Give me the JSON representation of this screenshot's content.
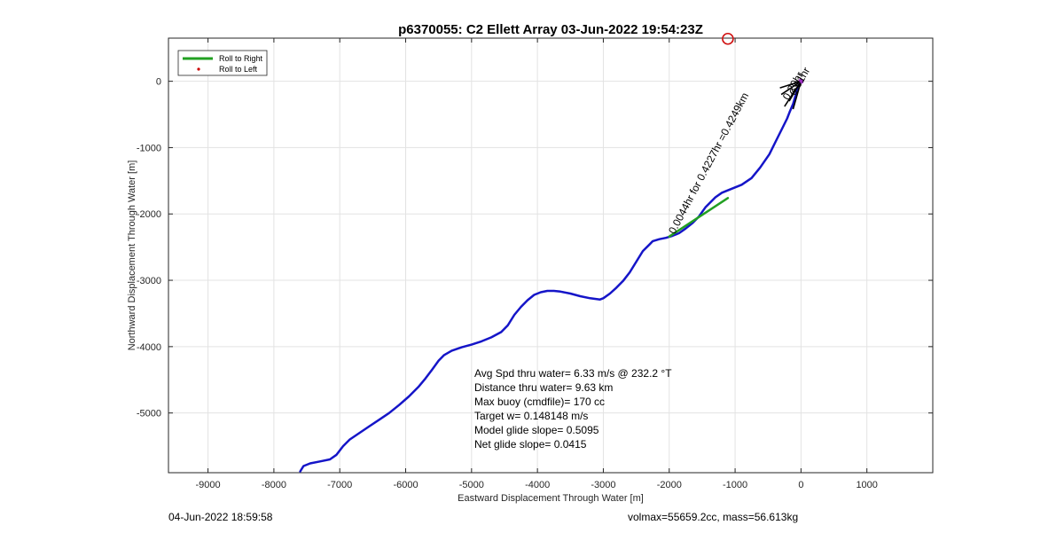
{
  "title": "p6370055: C2 Ellett Array 03-Jun-2022 19:54:23Z",
  "footer": {
    "left": "04-Jun-2022 18:59:58",
    "right": "volmax=55659.2cc, mass=56.613kg"
  },
  "colors": {
    "track": "#1515c8",
    "roll_right": "#22a022",
    "roll_left": "#cc0000",
    "marker": "#d01010",
    "annotation": "#000000",
    "end_marker": "#9b30c0"
  },
  "chart_data": {
    "type": "line",
    "title": "p6370055: C2 Ellett Array 03-Jun-2022 19:54:23Z",
    "xlabel": "Eastward Displacement Through Water [m]",
    "ylabel": "Northward Displacement Through Water [m]",
    "xlim": [
      -9600,
      2000
    ],
    "ylim": [
      -5900,
      650
    ],
    "xticks": [
      -9000,
      -8000,
      -7000,
      -6000,
      -5000,
      -4000,
      -3000,
      -2000,
      -1000,
      0,
      1000
    ],
    "yticks": [
      0,
      -1000,
      -2000,
      -3000,
      -4000,
      -5000
    ],
    "grid": true,
    "legend": {
      "location": "top-left",
      "entries": [
        {
          "label": "Roll to Right",
          "style": "line",
          "color": "#22a022"
        },
        {
          "label": "Roll to Left",
          "style": "dot",
          "color": "#cc0000"
        }
      ]
    },
    "series": [
      {
        "style": "track",
        "color": "#1515c8",
        "x": [
          -7600,
          -7550,
          -7450,
          -7300,
          -7150,
          -7050,
          -6950,
          -6850,
          -6700,
          -6550,
          -6400,
          -6250,
          -6100,
          -5950,
          -5800,
          -5700,
          -5600,
          -5500,
          -5420,
          -5300,
          -5150,
          -5000,
          -4850,
          -4700,
          -4550,
          -4450,
          -4350,
          -4250,
          -4150,
          -4050,
          -3950,
          -3850,
          -3750,
          -3650,
          -3500,
          -3350,
          -3200,
          -3050,
          -3000,
          -2900,
          -2800,
          -2700,
          -2600,
          -2500,
          -2400,
          -2300,
          -2250,
          -2150,
          -2050,
          -1950,
          -1850,
          -1750,
          -1650,
          -1550,
          -1450,
          -1300,
          -1200,
          -1100,
          -900,
          -750,
          -620,
          -480,
          -380,
          -280,
          -210,
          -170,
          -120,
          -90,
          -60,
          -30,
          0
        ],
        "y": [
          -5880,
          -5800,
          -5760,
          -5730,
          -5700,
          -5630,
          -5500,
          -5400,
          -5300,
          -5200,
          -5100,
          -5000,
          -4880,
          -4750,
          -4600,
          -4480,
          -4350,
          -4210,
          -4130,
          -4060,
          -4010,
          -3970,
          -3920,
          -3860,
          -3780,
          -3680,
          -3520,
          -3400,
          -3300,
          -3220,
          -3180,
          -3160,
          -3160,
          -3170,
          -3200,
          -3240,
          -3270,
          -3290,
          -3270,
          -3200,
          -3110,
          -3010,
          -2880,
          -2720,
          -2560,
          -2460,
          -2410,
          -2380,
          -2360,
          -2330,
          -2290,
          -2220,
          -2140,
          -2040,
          -1900,
          -1750,
          -1680,
          -1640,
          -1560,
          -1460,
          -1300,
          -1100,
          -900,
          -700,
          -560,
          -460,
          -340,
          -240,
          -140,
          -60,
          0
        ]
      },
      {
        "style": "roll_right",
        "color": "#22a022",
        "x": [
          -2000,
          -1110
        ],
        "y": [
          -2340,
          -1760
        ]
      }
    ],
    "annotations": [
      {
        "text": "0.0044hr for 0.4227hr =0.4249km",
        "x": -2000,
        "y": -2340,
        "angle_deg": -62
      },
      {
        "text": "0.20hr",
        "x": -270,
        "y": -320,
        "angle_deg": -60
      },
      {
        "text": "0.01hr",
        "x": -170,
        "y": -250,
        "angle_deg": -60
      }
    ],
    "markers": [
      {
        "kind": "circle",
        "x": -1110,
        "y": 640,
        "color": "#d01010"
      }
    ],
    "stats_text": [
      "Avg Spd thru water=  6.33 m/s @ 232.2 °T",
      "Distance thru water=  9.63 km",
      "Max buoy (cmdfile)= 170 cc",
      "Target w= 0.148148 m/s",
      "Model glide slope= 0.5095",
      "Net glide slope= 0.0415"
    ]
  }
}
